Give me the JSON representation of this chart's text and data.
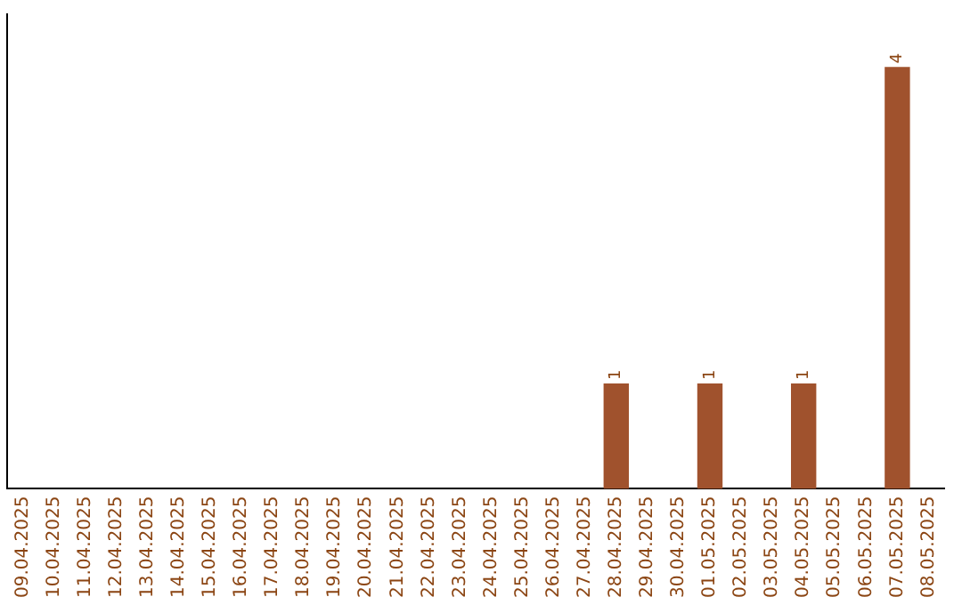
{
  "chart_data": {
    "type": "bar",
    "categories": [
      "09.04.2025",
      "10.04.2025",
      "11.04.2025",
      "12.04.2025",
      "13.04.2025",
      "14.04.2025",
      "15.04.2025",
      "16.04.2025",
      "17.04.2025",
      "18.04.2025",
      "19.04.2025",
      "20.04.2025",
      "21.04.2025",
      "22.04.2025",
      "23.04.2025",
      "24.04.2025",
      "25.04.2025",
      "26.04.2025",
      "27.04.2025",
      "28.04.2025",
      "29.04.2025",
      "30.04.2025",
      "01.05.2025",
      "02.05.2025",
      "03.05.2025",
      "04.05.2025",
      "05.05.2025",
      "06.05.2025",
      "07.05.2025",
      "08.05.2025"
    ],
    "values": [
      null,
      null,
      null,
      null,
      null,
      null,
      null,
      null,
      null,
      null,
      null,
      null,
      null,
      null,
      null,
      null,
      null,
      null,
      null,
      1,
      null,
      null,
      1,
      null,
      null,
      1,
      null,
      null,
      4,
      null
    ],
    "data_labels": true,
    "color": "#a0522d",
    "tick_labels": "x",
    "grid": false,
    "legend": false
  }
}
